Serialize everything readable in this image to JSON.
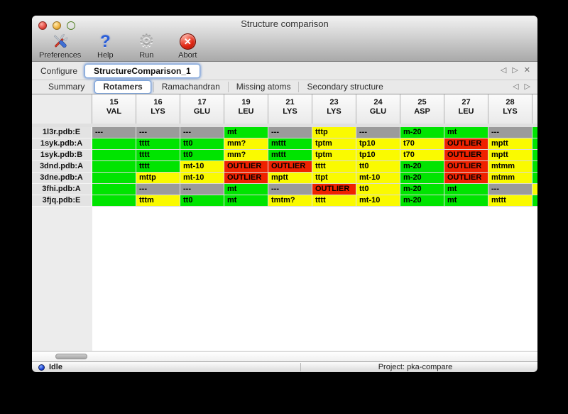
{
  "window": {
    "title": "Structure comparison"
  },
  "toolbar": {
    "items": [
      {
        "name": "preferences",
        "label": "Preferences",
        "icon": "tools-icon"
      },
      {
        "name": "help",
        "label": "Help",
        "icon": "question-icon"
      },
      {
        "name": "run",
        "label": "Run",
        "icon": "gear-icon",
        "glyph": "⚙"
      },
      {
        "name": "abort",
        "label": "Abort",
        "icon": "stop-icon",
        "glyph": "✕"
      }
    ]
  },
  "configure": {
    "label": "Configure",
    "instance": "StructureComparison_1",
    "nav_prev": "◁",
    "nav_next": "▷",
    "nav_close": "✕"
  },
  "tabs": {
    "selected": "Rotamers",
    "items": [
      "Summary",
      "Rotamers",
      "Ramachandran",
      "Missing atoms",
      "Secondary structure"
    ],
    "nav_prev": "◁",
    "nav_next": "▷"
  },
  "colors": {
    "green": "#00e400",
    "yellow": "#fafa00",
    "red": "#ef2200",
    "gray": "#9b9b9b"
  },
  "table": {
    "columns": [
      {
        "num": "15",
        "res": "VAL"
      },
      {
        "num": "16",
        "res": "LYS"
      },
      {
        "num": "17",
        "res": "GLU"
      },
      {
        "num": "19",
        "res": "LEU"
      },
      {
        "num": "21",
        "res": "LYS"
      },
      {
        "num": "23",
        "res": "LYS"
      },
      {
        "num": "24",
        "res": "GLU"
      },
      {
        "num": "25",
        "res": "ASP"
      },
      {
        "num": "27",
        "res": "LEU"
      },
      {
        "num": "28",
        "res": "LYS"
      }
    ],
    "rows": [
      {
        "name": "1l3r.pdb:E",
        "overflow": "green",
        "cells": [
          [
            "---",
            "gray"
          ],
          [
            "---",
            "gray"
          ],
          [
            "---",
            "gray"
          ],
          [
            "mt",
            "green"
          ],
          [
            "---",
            "gray"
          ],
          [
            "tttp",
            "yellow"
          ],
          [
            "---",
            "gray"
          ],
          [
            "m-20",
            "green"
          ],
          [
            "mt",
            "green"
          ],
          [
            "---",
            "gray"
          ]
        ]
      },
      {
        "name": "1syk.pdb:A",
        "overflow": "green",
        "cells": [
          [
            "",
            "green"
          ],
          [
            "tttt",
            "green"
          ],
          [
            "tt0",
            "green"
          ],
          [
            "mm?",
            "yellow"
          ],
          [
            "mttt",
            "green"
          ],
          [
            "tptm",
            "yellow"
          ],
          [
            "tp10",
            "yellow"
          ],
          [
            "t70",
            "yellow"
          ],
          [
            "OUTLIER",
            "red"
          ],
          [
            "mptt",
            "yellow"
          ]
        ]
      },
      {
        "name": "1syk.pdb:B",
        "overflow": "green",
        "cells": [
          [
            "",
            "green"
          ],
          [
            "tttt",
            "green"
          ],
          [
            "tt0",
            "green"
          ],
          [
            "mm?",
            "yellow"
          ],
          [
            "mttt",
            "green"
          ],
          [
            "tptm",
            "yellow"
          ],
          [
            "tp10",
            "yellow"
          ],
          [
            "t70",
            "yellow"
          ],
          [
            "OUTLIER",
            "red"
          ],
          [
            "mptt",
            "yellow"
          ]
        ]
      },
      {
        "name": "3dnd.pdb:A",
        "overflow": "green",
        "cells": [
          [
            "",
            "green"
          ],
          [
            "tttt",
            "green"
          ],
          [
            "mt-10",
            "yellow"
          ],
          [
            "OUTLIER",
            "red"
          ],
          [
            "OUTLIER",
            "red"
          ],
          [
            "tttt",
            "yellow"
          ],
          [
            "tt0",
            "yellow"
          ],
          [
            "m-20",
            "green"
          ],
          [
            "OUTLIER",
            "red"
          ],
          [
            "mtmm",
            "yellow"
          ]
        ]
      },
      {
        "name": "3dne.pdb:A",
        "overflow": "green",
        "cells": [
          [
            "",
            "green"
          ],
          [
            "mttp",
            "yellow"
          ],
          [
            "mt-10",
            "yellow"
          ],
          [
            "OUTLIER",
            "red"
          ],
          [
            "mptt",
            "yellow"
          ],
          [
            "ttpt",
            "yellow"
          ],
          [
            "mt-10",
            "yellow"
          ],
          [
            "m-20",
            "green"
          ],
          [
            "OUTLIER",
            "red"
          ],
          [
            "mtmm",
            "yellow"
          ]
        ]
      },
      {
        "name": "3fhi.pdb:A",
        "overflow": "yellow",
        "cells": [
          [
            "",
            "green"
          ],
          [
            "---",
            "gray"
          ],
          [
            "---",
            "gray"
          ],
          [
            "mt",
            "green"
          ],
          [
            "---",
            "gray"
          ],
          [
            "OUTLIER",
            "red"
          ],
          [
            "tt0",
            "yellow"
          ],
          [
            "m-20",
            "green"
          ],
          [
            "mt",
            "green"
          ],
          [
            "---",
            "gray"
          ]
        ]
      },
      {
        "name": "3fjq.pdb:E",
        "overflow": "green",
        "cells": [
          [
            "",
            "green"
          ],
          [
            "tttm",
            "yellow"
          ],
          [
            "tt0",
            "green"
          ],
          [
            "mt",
            "green"
          ],
          [
            "tmtm?",
            "yellow"
          ],
          [
            "tttt",
            "yellow"
          ],
          [
            "mt-10",
            "yellow"
          ],
          [
            "m-20",
            "green"
          ],
          [
            "mt",
            "green"
          ],
          [
            "mttt",
            "yellow"
          ]
        ]
      }
    ]
  },
  "status": {
    "state": "Idle",
    "project": "Project: pka-compare"
  }
}
